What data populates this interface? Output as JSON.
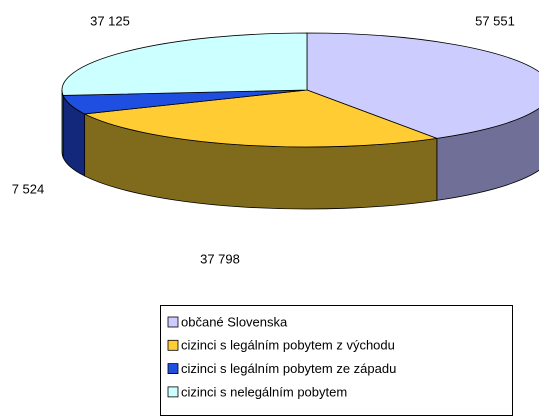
{
  "chart_data": {
    "type": "pie",
    "categories": [
      "občané Slovenska",
      "cizinci s legálním pobytem z východu",
      "cizinci s legálním pobytem ze západu",
      "cizinci s nelegálním pobytem"
    ],
    "values": [
      57551,
      37798,
      7524,
      37125
    ],
    "value_labels": [
      "57 551",
      "37 798",
      "7 524",
      "37 125"
    ],
    "colors": [
      "#ccccff",
      "#ffcc33",
      "#1f4fe0",
      "#ccffff"
    ],
    "side_colors": [
      "#6f6f98",
      "#806b1c",
      "#13287a",
      "#6a9a9a"
    ],
    "legend": "bottom"
  }
}
